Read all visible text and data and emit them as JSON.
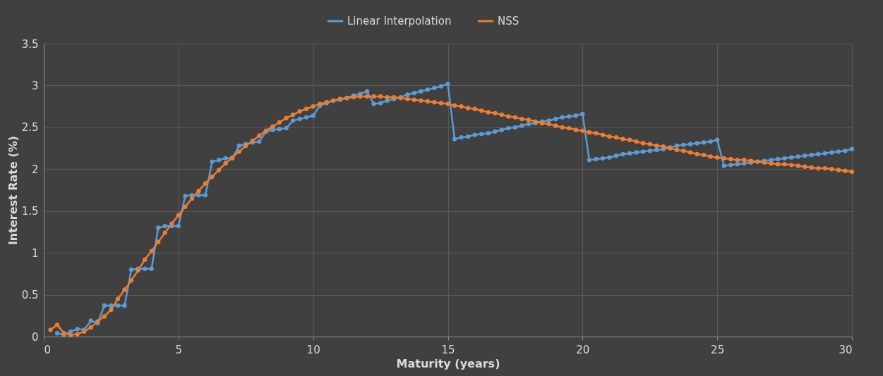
{
  "chart_data": {
    "type": "line",
    "xlabel": "Maturity (years)",
    "ylabel": "Interest Rate (%)",
    "xlim": [
      0,
      30
    ],
    "xticks": [
      0,
      5,
      10,
      15,
      20,
      25,
      30
    ],
    "ylim": [
      0,
      3.5
    ],
    "yticks": [
      0,
      0.5,
      1,
      1.5,
      2,
      2.5,
      3,
      3.5
    ],
    "grid": true,
    "legend": "top",
    "marker": "circle",
    "line_style": "solid",
    "x": [
      0.25,
      0.5,
      0.75,
      1,
      1.25,
      1.5,
      1.75,
      2,
      2.25,
      2.5,
      2.75,
      3,
      3.25,
      3.5,
      3.75,
      4,
      4.25,
      4.5,
      4.75,
      5,
      5.25,
      5.5,
      5.75,
      6,
      6.25,
      6.5,
      6.75,
      7,
      7.25,
      7.5,
      7.75,
      8,
      8.25,
      8.5,
      8.75,
      9,
      9.25,
      9.5,
      9.75,
      10,
      10.25,
      10.5,
      10.75,
      11,
      11.25,
      11.5,
      11.75,
      12,
      12.25,
      12.5,
      12.75,
      13,
      13.25,
      13.5,
      13.75,
      14,
      14.25,
      14.5,
      14.75,
      15,
      15.25,
      15.5,
      15.75,
      16,
      16.25,
      16.5,
      16.75,
      17,
      17.25,
      17.5,
      17.75,
      18,
      18.25,
      18.5,
      18.75,
      19,
      19.25,
      19.5,
      19.75,
      20,
      20.25,
      20.5,
      20.75,
      21,
      21.25,
      21.5,
      21.75,
      22,
      22.25,
      22.5,
      22.75,
      23,
      23.25,
      23.5,
      23.75,
      24,
      24.25,
      24.5,
      24.75,
      25,
      25.25,
      25.5,
      25.75,
      26,
      26.25,
      26.5,
      26.75,
      27,
      27.25,
      27.5,
      27.75,
      28,
      28.25,
      28.5,
      28.75,
      29,
      29.25,
      29.5,
      29.75,
      30
    ],
    "series": [
      {
        "name": "Linear Interpolation",
        "color": "#5b9bd5",
        "values": [
          null,
          0.04,
          0.02,
          0.06,
          0.09,
          0.08,
          0.19,
          0.16,
          0.37,
          0.37,
          0.37,
          0.37,
          0.8,
          0.81,
          0.81,
          0.81,
          1.3,
          1.32,
          1.32,
          1.32,
          1.68,
          1.69,
          1.69,
          1.69,
          2.09,
          2.11,
          2.13,
          2.13,
          2.28,
          2.3,
          2.32,
          2.33,
          2.45,
          2.47,
          2.48,
          2.49,
          2.58,
          2.6,
          2.62,
          2.64,
          2.76,
          2.79,
          2.82,
          2.83,
          2.85,
          2.88,
          2.9,
          2.93,
          2.78,
          2.79,
          2.82,
          2.84,
          2.86,
          2.89,
          2.91,
          2.93,
          2.95,
          2.97,
          2.99,
          3.02,
          2.36,
          2.38,
          2.39,
          2.41,
          2.42,
          2.43,
          2.45,
          2.47,
          2.49,
          2.5,
          2.52,
          2.54,
          2.55,
          2.57,
          2.58,
          2.6,
          2.62,
          2.63,
          2.64,
          2.66,
          2.11,
          2.12,
          2.13,
          2.14,
          2.16,
          2.18,
          2.19,
          2.2,
          2.21,
          2.22,
          2.23,
          2.24,
          2.26,
          2.28,
          2.29,
          2.3,
          2.31,
          2.32,
          2.33,
          2.35,
          2.04,
          2.05,
          2.06,
          2.07,
          2.08,
          2.09,
          2.1,
          2.11,
          2.12,
          2.13,
          2.14,
          2.15,
          2.16,
          2.17,
          2.18,
          2.19,
          2.2,
          2.21,
          2.22,
          2.24
        ]
      },
      {
        "name": "NSS",
        "color": "#ed7d31",
        "values": [
          0.08,
          0.14,
          0.04,
          0.02,
          0.03,
          0.06,
          0.11,
          0.18,
          0.24,
          0.32,
          0.45,
          0.56,
          0.67,
          0.79,
          0.92,
          1.02,
          1.13,
          1.24,
          1.35,
          1.45,
          1.55,
          1.65,
          1.74,
          1.83,
          1.91,
          1.99,
          2.07,
          2.14,
          2.21,
          2.28,
          2.34,
          2.4,
          2.46,
          2.51,
          2.56,
          2.61,
          2.65,
          2.69,
          2.72,
          2.75,
          2.78,
          2.8,
          2.82,
          2.84,
          2.85,
          2.86,
          2.87,
          2.87,
          2.87,
          2.87,
          2.86,
          2.86,
          2.85,
          2.84,
          2.83,
          2.82,
          2.81,
          2.8,
          2.79,
          2.78,
          2.76,
          2.75,
          2.73,
          2.72,
          2.7,
          2.68,
          2.67,
          2.65,
          2.63,
          2.62,
          2.6,
          2.59,
          2.57,
          2.55,
          2.54,
          2.52,
          2.5,
          2.49,
          2.47,
          2.46,
          2.44,
          2.43,
          2.41,
          2.39,
          2.38,
          2.36,
          2.35,
          2.33,
          2.31,
          2.3,
          2.28,
          2.27,
          2.25,
          2.23,
          2.22,
          2.2,
          2.18,
          2.17,
          2.15,
          2.14,
          2.13,
          2.12,
          2.11,
          2.11,
          2.1,
          2.09,
          2.08,
          2.07,
          2.06,
          2.06,
          2.05,
          2.04,
          2.03,
          2.02,
          2.01,
          2.01,
          2,
          1.99,
          1.98,
          1.97
        ]
      }
    ]
  }
}
